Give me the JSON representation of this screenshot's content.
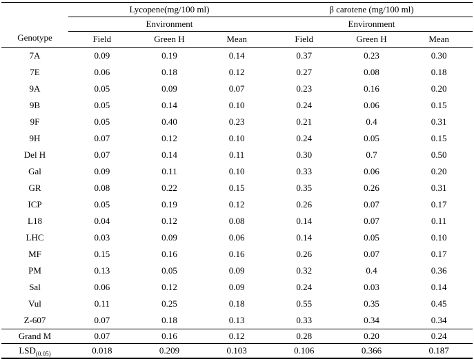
{
  "table": {
    "genotype_header": "Genotype",
    "groups": [
      {
        "title": "Lycopene(mg/100 ml)",
        "subtitle": "Environment"
      },
      {
        "title": "β carotene (mg/100 ml)",
        "subtitle": "Environment"
      }
    ],
    "column_headers": [
      "Field",
      "Green H",
      "Mean",
      "Field",
      "Green H",
      "Mean"
    ],
    "rows": [
      {
        "genotype": "7A",
        "values": [
          "0.09",
          "0.19",
          "0.14",
          "0.37",
          "0.23",
          "0.30"
        ]
      },
      {
        "genotype": "7E",
        "values": [
          "0.06",
          "0.18",
          "0.12",
          "0.27",
          "0.08",
          "0.18"
        ]
      },
      {
        "genotype": "9A",
        "values": [
          "0.05",
          "0.09",
          "0.07",
          "0.23",
          "0.16",
          "0.20"
        ]
      },
      {
        "genotype": "9B",
        "values": [
          "0.05",
          "0.14",
          "0.10",
          "0.24",
          "0.06",
          "0.15"
        ]
      },
      {
        "genotype": "9F",
        "values": [
          "0.05",
          "0.40",
          "0.23",
          "0.21",
          "0.4",
          "0.31"
        ]
      },
      {
        "genotype": "9H",
        "values": [
          "0.07",
          "0.12",
          "0.10",
          "0.24",
          "0.05",
          "0.15"
        ]
      },
      {
        "genotype": "Del H",
        "values": [
          "0.07",
          "0.14",
          "0.11",
          "0.30",
          "0.7",
          "0.50"
        ]
      },
      {
        "genotype": "Gal",
        "values": [
          "0.09",
          "0.11",
          "0.10",
          "0.33",
          "0.06",
          "0.20"
        ]
      },
      {
        "genotype": "GR",
        "values": [
          "0.08",
          "0.22",
          "0.15",
          "0.35",
          "0.26",
          "0.31"
        ]
      },
      {
        "genotype": "ICP",
        "values": [
          "0.05",
          "0.19",
          "0.12",
          "0.26",
          "0.07",
          "0.17"
        ]
      },
      {
        "genotype": "L18",
        "values": [
          "0.04",
          "0.12",
          "0.08",
          "0.14",
          "0.07",
          "0.11"
        ]
      },
      {
        "genotype": "LHC",
        "values": [
          "0.03",
          "0.09",
          "0.06",
          "0.14",
          "0.05",
          "0.10"
        ]
      },
      {
        "genotype": "MF",
        "values": [
          "0.15",
          "0.16",
          "0.16",
          "0.26",
          "0.07",
          "0.17"
        ]
      },
      {
        "genotype": "PM",
        "values": [
          "0.13",
          "0.05",
          "0.09",
          "0.32",
          "0.4",
          "0.36"
        ]
      },
      {
        "genotype": "Sal",
        "values": [
          "0.06",
          "0.12",
          "0.09",
          "0.24",
          "0.03",
          "0.14"
        ]
      },
      {
        "genotype": "Vul",
        "values": [
          "0.11",
          "0.25",
          "0.18",
          "0.55",
          "0.35",
          "0.45"
        ]
      },
      {
        "genotype": "Z-607",
        "values": [
          "0.07",
          "0.18",
          "0.13",
          "0.33",
          "0.34",
          "0.34"
        ]
      }
    ],
    "grand_mean": {
      "label": "Grand M",
      "values": [
        "0.07",
        "0.16",
        "0.12",
        "0.28",
        "0.20",
        "0.24"
      ]
    },
    "lsd": {
      "label": "LSD",
      "label_sub": "(0.05)",
      "values": [
        "0.018",
        "0.209",
        "0.103",
        "0.106",
        "0.366",
        "0.187"
      ]
    }
  }
}
